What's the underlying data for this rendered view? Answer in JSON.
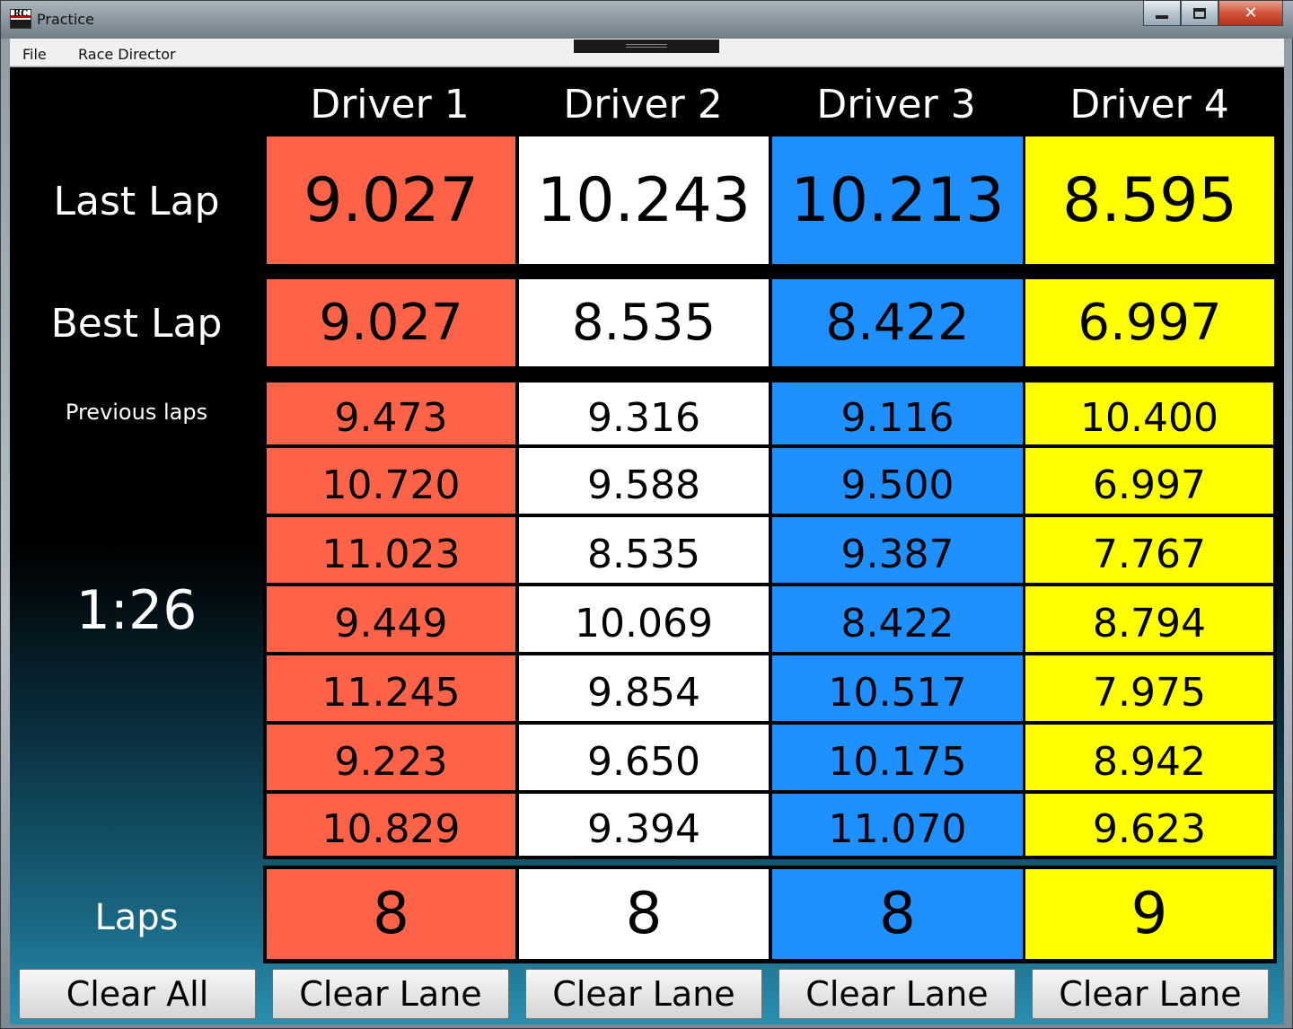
{
  "window": {
    "title": "Practice",
    "logo_text": "RC",
    "controls": {
      "minimize_icon": "minimize-icon",
      "maximize_icon": "maximize-icon",
      "close_glyph": "✕"
    }
  },
  "menu": [
    {
      "label": "File"
    },
    {
      "label": "Race Director"
    }
  ],
  "drivers": [
    "Driver 1",
    "Driver 2",
    "Driver 3",
    "Driver 4"
  ],
  "lane_colors": [
    "#ff6347",
    "#ffffff",
    "#1e90ff",
    "#ffff00"
  ],
  "labels": {
    "last_lap": "Last Lap",
    "best_lap": "Best Lap",
    "previous_laps": "Previous laps",
    "timer": "1:26",
    "laps": "Laps"
  },
  "last_lap": [
    "9.027",
    "10.243",
    "10.213",
    "8.595"
  ],
  "best_lap": [
    "9.027",
    "8.535",
    "8.422",
    "6.997"
  ],
  "previous_laps": [
    [
      "9.473",
      "10.720",
      "11.023",
      "9.449",
      "11.245",
      "9.223",
      "10.829"
    ],
    [
      "9.316",
      "9.588",
      "8.535",
      "10.069",
      "9.854",
      "9.650",
      "9.394"
    ],
    [
      "9.116",
      "9.500",
      "9.387",
      "8.422",
      "10.517",
      "10.175",
      "11.070"
    ],
    [
      "10.400",
      "6.997",
      "7.767",
      "8.794",
      "7.975",
      "8.942",
      "9.623"
    ]
  ],
  "laps": [
    "8",
    "8",
    "8",
    "9"
  ],
  "buttons": {
    "clear_all": "Clear All",
    "clear_lane": [
      "Clear Lane",
      "Clear Lane",
      "Clear Lane",
      "Clear Lane"
    ]
  }
}
